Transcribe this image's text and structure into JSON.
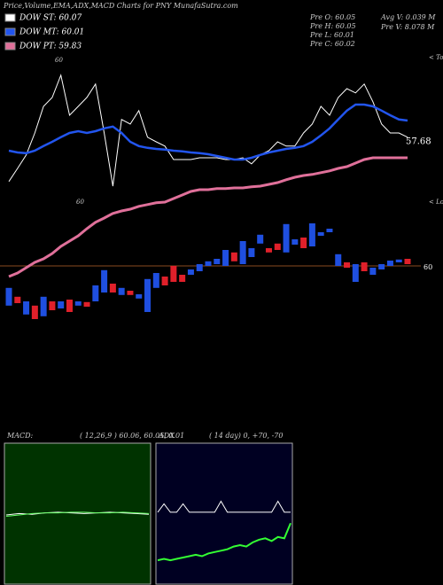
{
  "chart_data": [
    {
      "type": "candlestick",
      "title": "Price,Volume,EMA,ADX,MACD Charts for PNY MunafaSutra.com",
      "stats": [
        "Pre O: 60.05",
        "Pre H: 60.05",
        "Pre L: 60.01",
        "Pre C: 60.02",
        "Avg V: 0.039 M",
        "Pre V: 8.078 M"
      ],
      "annotations": [
        "60",
        "60",
        "57.68",
        "< Tops",
        "< Lows"
      ],
      "up_color": "#1f4fe0",
      "down_color": "#e0202a",
      "open": [
        58.88,
        59.13,
        58.63,
        58.88,
        58.58,
        59.0,
        58.8,
        59.05,
        58.88,
        58.98,
        59.0,
        59.25,
        59.5,
        59.18,
        59.3,
        59.08,
        58.7,
        59.38,
        59.7,
        60.0,
        59.75,
        59.75,
        59.85,
        60.0,
        60.05,
        60.0,
        60.38,
        60.05,
        60.25,
        60.63,
        60.5,
        60.63,
        60.38,
        60.6,
        60.8,
        60.55,
        60.85,
        60.95,
        60.0,
        60.1,
        59.55,
        60.1,
        59.75,
        59.9,
        60.0,
        60.1,
        60.2
      ],
      "close": [
        59.38,
        58.95,
        59.0,
        58.5,
        59.13,
        58.75,
        59.0,
        58.7,
        59.0,
        58.85,
        59.45,
        59.88,
        59.25,
        59.38,
        59.18,
        59.2,
        59.63,
        59.8,
        59.45,
        59.55,
        59.55,
        59.9,
        60.05,
        60.13,
        60.2,
        60.45,
        60.13,
        60.7,
        60.5,
        60.88,
        60.38,
        60.45,
        61.18,
        60.75,
        60.5,
        61.2,
        60.95,
        61.05,
        60.33,
        59.95,
        60.05,
        59.85,
        59.95,
        60.05,
        60.15,
        60.18,
        60.05
      ],
      "series": [
        {
          "name": "DOW ST: 60.07",
          "color": "#ffffff",
          "values": [
            62.38,
            62.75,
            63.13,
            63.75,
            64.5,
            64.75,
            65.38,
            64.25,
            64.5,
            64.75,
            65.13,
            63.75,
            62.25,
            64.13,
            64.0,
            64.38,
            63.63,
            63.5,
            63.38,
            63.0,
            63.0,
            63.0,
            63.05,
            63.05,
            63.05,
            63.0,
            63.0,
            63.05,
            62.88,
            63.13,
            63.25,
            63.5,
            63.38,
            63.38,
            63.75,
            64.0,
            64.5,
            64.25,
            64.75,
            65.0,
            64.88,
            65.13,
            64.63,
            64.0,
            63.75,
            63.75,
            63.63
          ]
        },
        {
          "name": "DOW MT: 60.01",
          "color": "#2255ee",
          "values": [
            63.25,
            63.2,
            63.18,
            63.25,
            63.38,
            63.5,
            63.63,
            63.75,
            63.8,
            63.75,
            63.8,
            63.88,
            63.93,
            63.75,
            63.5,
            63.38,
            63.33,
            63.3,
            63.28,
            63.25,
            63.23,
            63.2,
            63.18,
            63.15,
            63.1,
            63.05,
            63.0,
            63.0,
            63.05,
            63.13,
            63.2,
            63.25,
            63.3,
            63.33,
            63.38,
            63.5,
            63.68,
            63.88,
            64.13,
            64.38,
            64.55,
            64.55,
            64.5,
            64.38,
            64.25,
            64.13,
            64.1
          ]
        },
        {
          "name": "DOW PT: 59.83",
          "color": "#e0709a",
          "values": [
            59.7,
            59.8,
            59.95,
            60.1,
            60.2,
            60.35,
            60.55,
            60.7,
            60.85,
            61.05,
            61.23,
            61.35,
            61.48,
            61.55,
            61.6,
            61.68,
            61.73,
            61.78,
            61.8,
            61.9,
            62.0,
            62.1,
            62.15,
            62.15,
            62.18,
            62.18,
            62.2,
            62.2,
            62.23,
            62.25,
            62.3,
            62.35,
            62.43,
            62.5,
            62.55,
            62.58,
            62.63,
            62.68,
            62.75,
            62.8,
            62.9,
            63.0,
            63.05,
            63.05,
            63.05,
            63.05,
            63.05
          ]
        }
      ],
      "ylim": [
        58.25,
        66.5
      ],
      "yticks": [
        60
      ],
      "grid": true
    },
    {
      "type": "line",
      "title": "MACD:",
      "subtitle": "( 12,26,9 ) 60.06, 60.05, 0.01",
      "background": "#003300",
      "ylim": [
        -1,
        1
      ],
      "series": [
        {
          "color": "#ffffff",
          "values": [
            0.02,
            0.04,
            0.03,
            0.05,
            0.06,
            0.05,
            0.04,
            0.05,
            0.06,
            0.05,
            0.04,
            0.03
          ]
        },
        {
          "color": "#66ff66",
          "values": [
            0.0,
            0.02,
            0.04,
            0.05,
            0.05,
            0.06,
            0.06,
            0.05,
            0.05,
            0.06,
            0.05,
            0.04
          ]
        }
      ]
    },
    {
      "type": "line",
      "title": "ADX",
      "subtitle": "( 14 day) 0, +70, -70",
      "background": "#000022",
      "ylim": [
        0,
        100
      ],
      "series": [
        {
          "color": "#ffffff",
          "values": [
            53,
            59,
            53,
            53,
            59,
            53,
            53,
            53,
            53,
            53,
            61,
            53,
            53,
            53,
            53,
            53,
            53,
            53,
            53,
            61,
            53,
            53
          ]
        },
        {
          "color": "#33ff33",
          "values": [
            18,
            19,
            18,
            19,
            20,
            21,
            22,
            21,
            23,
            24,
            25,
            26,
            28,
            29,
            28,
            31,
            33,
            34,
            32,
            35,
            34,
            45
          ]
        }
      ]
    }
  ]
}
